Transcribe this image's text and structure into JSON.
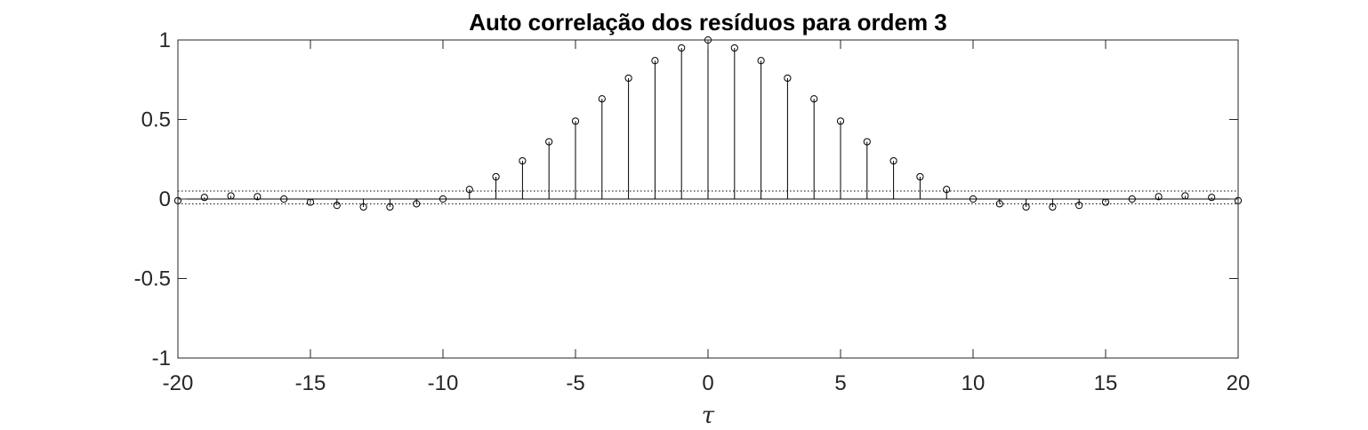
{
  "chart_data": {
    "type": "stem",
    "title": "Auto correlação dos resíduos para ordem 3",
    "xlabel": "τ",
    "ylabel": "",
    "xlim": [
      -20,
      20
    ],
    "ylim": [
      -1,
      1
    ],
    "xticks": [
      -20,
      -15,
      -10,
      -5,
      0,
      5,
      10,
      15,
      20
    ],
    "xtick_labels": [
      "-20",
      "-15",
      "-10",
      "-5",
      "0",
      "5",
      "10",
      "15",
      "20"
    ],
    "yticks": [
      -1,
      -0.5,
      0,
      0.5,
      1
    ],
    "ytick_labels": [
      "-1",
      "-0.5",
      "0",
      "0.5",
      "1"
    ],
    "confidence_bounds": [
      0.05,
      -0.03
    ],
    "grid": false,
    "series": [
      {
        "x": [
          -20,
          -19,
          -18,
          -17,
          -16,
          -15,
          -14,
          -13,
          -12,
          -11,
          -10,
          -9,
          -8,
          -7,
          -6,
          -5,
          -4,
          -3,
          -2,
          -1,
          0,
          1,
          2,
          3,
          4,
          5,
          6,
          7,
          8,
          9,
          10,
          11,
          12,
          13,
          14,
          15,
          16,
          17,
          18,
          19,
          20
        ],
        "values": [
          -0.01,
          0.01,
          0.02,
          0.015,
          0.0,
          -0.02,
          -0.04,
          -0.05,
          -0.05,
          -0.03,
          0.0,
          0.06,
          0.14,
          0.24,
          0.36,
          0.49,
          0.63,
          0.76,
          0.87,
          0.95,
          1.0,
          0.95,
          0.87,
          0.76,
          0.63,
          0.49,
          0.36,
          0.24,
          0.14,
          0.06,
          0.0,
          -0.03,
          -0.05,
          -0.05,
          -0.04,
          -0.02,
          0.0,
          0.015,
          0.02,
          0.01,
          -0.01
        ]
      }
    ]
  }
}
